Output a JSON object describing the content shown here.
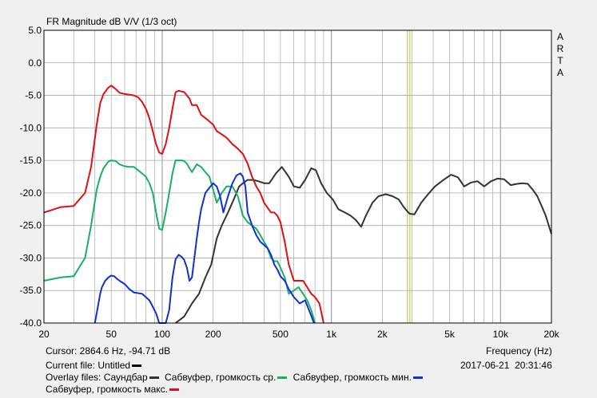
{
  "app": "ARTA",
  "chart_data": {
    "type": "line",
    "title": "FR Magnitude dB V/V (1/3 oct)",
    "xlabel": "Frequency (Hz)",
    "ylabel": "",
    "x_scale": "log",
    "xlim": [
      20,
      20000
    ],
    "ylim": [
      -40,
      5
    ],
    "x_ticks": [
      20,
      50,
      100,
      200,
      500,
      1000,
      2000,
      5000,
      10000,
      20000
    ],
    "x_tick_labels": [
      "20",
      "50",
      "100",
      "200",
      "500",
      "1k",
      "2k",
      "5k",
      "10k",
      "20k"
    ],
    "y_ticks": [
      5,
      0,
      -5,
      -10,
      -15,
      -20,
      -25,
      -30,
      -35,
      -40
    ],
    "y_tick_labels": [
      "5.0",
      "0.0",
      "-5.0",
      "-10.0",
      "-15.0",
      "-20.0",
      "-25.0",
      "-30.0",
      "-35.0",
      "-40.0"
    ],
    "grid": true,
    "cursor_x": 2864.6,
    "series": [
      {
        "name": "Саундбар",
        "color": "#333333",
        "x": [
          120,
          135,
          150,
          165,
          180,
          195,
          210,
          225,
          245,
          265,
          285,
          300,
          320,
          345,
          370,
          400,
          430,
          470,
          510,
          560,
          600,
          650,
          700,
          760,
          810,
          870,
          940,
          1020,
          1100,
          1200,
          1300,
          1400,
          1500,
          1600,
          1750,
          1900,
          2100,
          2300,
          2500,
          2700,
          2900,
          3100,
          3400,
          3700,
          4100,
          4600,
          5100,
          5600,
          6100,
          6700,
          7300,
          8000,
          8800,
          9600,
          10500,
          11500,
          12500,
          13500,
          14500,
          15500,
          16500,
          17500,
          18500,
          20000
        ],
        "y": [
          -40,
          -39,
          -37,
          -35.5,
          -33,
          -31,
          -27,
          -25,
          -23,
          -21,
          -19,
          -18.5,
          -18,
          -18,
          -18.2,
          -18.5,
          -18.5,
          -17,
          -16,
          -17.5,
          -19,
          -19.2,
          -18,
          -16.2,
          -16.5,
          -18.5,
          -20,
          -21,
          -22.5,
          -23,
          -23.5,
          -24.2,
          -25.2,
          -23.5,
          -21.5,
          -20.5,
          -20.2,
          -20.5,
          -21,
          -22.3,
          -23.2,
          -23.3,
          -21.5,
          -20.3,
          -19,
          -18,
          -17.2,
          -17.6,
          -19,
          -18.4,
          -18.2,
          -19,
          -18.2,
          -17.8,
          -17.9,
          -18.8,
          -18.6,
          -18.5,
          -18.6,
          -19.5,
          -20.5,
          -22,
          -23.5,
          -26.3
        ]
      },
      {
        "name": "Сабвуфер, громкость ср.",
        "color": "#19b065",
        "x": [
          20,
          25,
          30,
          35,
          38,
          41,
          43,
          45,
          48,
          50,
          53,
          56,
          60,
          64,
          68,
          72,
          76,
          80,
          84,
          88,
          92,
          96,
          100,
          105,
          110,
          115,
          120,
          125,
          130,
          135,
          140,
          145,
          150,
          160,
          170,
          180,
          190,
          200,
          210,
          225,
          240,
          260,
          280,
          300,
          320,
          340,
          360,
          380,
          400,
          420,
          440,
          460,
          480,
          500,
          530,
          560,
          600,
          640,
          680,
          720,
          760,
          800
        ],
        "y": [
          -33.5,
          -33,
          -32.8,
          -30,
          -25,
          -19.5,
          -17.5,
          -16.2,
          -15.2,
          -15,
          -15.1,
          -15.6,
          -15.9,
          -16,
          -16,
          -16.5,
          -17,
          -17.5,
          -18.5,
          -20,
          -23,
          -25.5,
          -25.7,
          -23,
          -20,
          -17,
          -15,
          -15,
          -15,
          -15.1,
          -15.5,
          -16.2,
          -16.8,
          -15.6,
          -16,
          -16.8,
          -17.5,
          -19.5,
          -21.5,
          -20,
          -19,
          -19,
          -20.5,
          -23.5,
          -24.5,
          -25,
          -25.5,
          -26.5,
          -27.5,
          -28.5,
          -30,
          -30.5,
          -30.5,
          -31.5,
          -33,
          -35.5,
          -35,
          -34.5,
          -35.5,
          -36.5,
          -38,
          -40
        ]
      },
      {
        "name": "Сабвуфер, громкость мин.",
        "color": "#1030d0",
        "x": [
          40,
          41,
          42,
          43,
          44,
          46,
          48,
          50,
          52,
          54,
          56,
          60,
          64,
          68,
          72,
          76,
          80,
          84,
          88,
          92,
          96,
          100,
          105,
          110,
          115,
          120,
          125,
          130,
          135,
          140,
          145,
          150,
          155,
          160,
          165,
          170,
          180,
          190,
          200,
          210,
          220,
          230,
          245,
          260,
          275,
          290,
          300,
          310,
          320,
          340,
          360,
          380,
          400,
          420,
          440,
          460,
          480,
          500,
          530,
          560,
          600,
          650,
          700,
          750,
          790
        ],
        "y": [
          -40,
          -38.5,
          -37,
          -35.5,
          -34.5,
          -33.5,
          -33,
          -32.7,
          -32.8,
          -33.2,
          -33.5,
          -34,
          -34.8,
          -35.3,
          -35.4,
          -35.5,
          -36,
          -36.5,
          -37.5,
          -38.5,
          -40,
          -40.5,
          -40,
          -38,
          -33,
          -30.2,
          -29.5,
          -29.8,
          -30.3,
          -31.5,
          -33.5,
          -33,
          -30,
          -27,
          -24.5,
          -22.5,
          -20,
          -19.2,
          -18.5,
          -19,
          -20.5,
          -23,
          -20.5,
          -18.5,
          -17.3,
          -17,
          -17.5,
          -19,
          -23,
          -25,
          -26.5,
          -27.5,
          -28,
          -28.5,
          -29.5,
          -31,
          -31.8,
          -32.8,
          -33.5,
          -34.8,
          -36,
          -37,
          -36.5,
          -38.5,
          -40
        ]
      },
      {
        "name": "Сабвуфер, громкость макс.",
        "color": "#e01010",
        "x": [
          20,
          25,
          30,
          35,
          38,
          41,
          43,
          45,
          48,
          50,
          53,
          56,
          60,
          64,
          68,
          72,
          76,
          80,
          84,
          88,
          92,
          96,
          100,
          105,
          110,
          115,
          120,
          125,
          130,
          135,
          140,
          145,
          150,
          160,
          170,
          180,
          190,
          200,
          210,
          225,
          240,
          260,
          280,
          300,
          320,
          340,
          360,
          380,
          400,
          420,
          440,
          460,
          480,
          500,
          530,
          560,
          600,
          640,
          680,
          720,
          760,
          800,
          850,
          900
        ],
        "y": [
          -23,
          -22.2,
          -22,
          -20,
          -16,
          -9.5,
          -6.2,
          -4.8,
          -3.8,
          -3.5,
          -4,
          -4.6,
          -4.8,
          -4.9,
          -5,
          -5.3,
          -6,
          -7,
          -8.5,
          -10.5,
          -12.5,
          -13.8,
          -14,
          -12.5,
          -10,
          -7,
          -4.5,
          -4.3,
          -4.4,
          -4.5,
          -5,
          -5.5,
          -6.5,
          -6.5,
          -8,
          -8.5,
          -9,
          -9.5,
          -10.5,
          -11,
          -11.5,
          -12.5,
          -13.2,
          -14,
          -15.5,
          -17.5,
          -19,
          -20,
          -21.5,
          -22.3,
          -23,
          -23,
          -23.5,
          -24.5,
          -27.5,
          -31,
          -33.5,
          -33.5,
          -33.5,
          -34.5,
          -35.5,
          -36,
          -37,
          -40
        ]
      }
    ]
  },
  "side_label": [
    "A",
    "R",
    "T",
    "A"
  ],
  "status": {
    "cursor": "Cursor: 2864.6 Hz, -94.71 dB",
    "current_file": "Current file: Untitled",
    "frequency_label": "Frequency (Hz)",
    "date": "2017-06-21",
    "time": "20:31:46",
    "overlay_prefix": "Overlay files:",
    "overlay_1": "Саундбар",
    "overlay_2": "Сабвуфер, громкость ср.",
    "overlay_3": "Сабвуфер, громкость мин.",
    "overlay_4": "Сабвуфер, громкость макс."
  },
  "colors": {
    "plot_bg": "#ffffff",
    "grid": "#a8a8a8",
    "cursor_line": "#bdbd40",
    "current_file": "#000000"
  }
}
